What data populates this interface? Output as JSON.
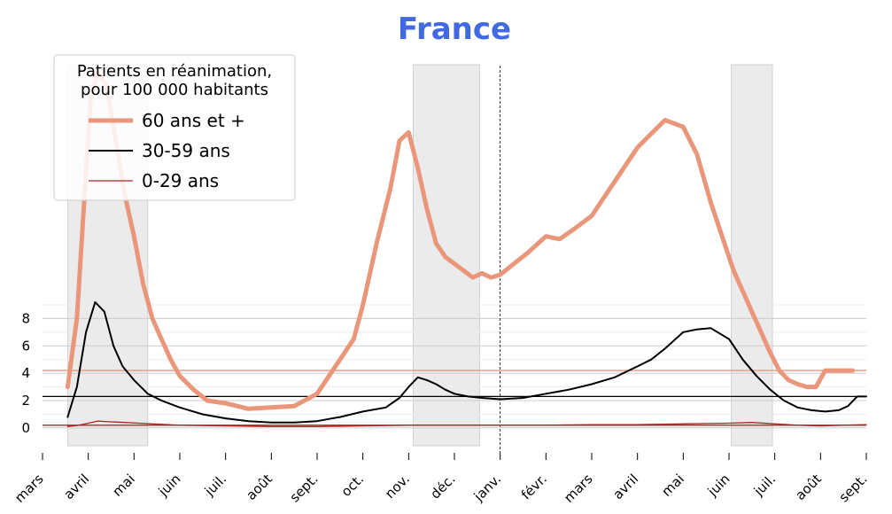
{
  "chart_data": {
    "type": "line",
    "title": "France",
    "legend": {
      "title_lines": [
        "Patients en réanimation,",
        "pour 100 000 habitants"
      ],
      "placement": "top-left"
    },
    "x_tick_labels": [
      "mars",
      "avril",
      "mai",
      "juin",
      "juil.",
      "août",
      "sept.",
      "oct.",
      "nov.",
      "déc.",
      "janv.",
      "févr.",
      "mars",
      "avril",
      "mai",
      "juin",
      "juil.",
      "août",
      "sept."
    ],
    "y_tick_labels": [
      "0",
      "2",
      "4",
      "6",
      "8"
    ],
    "y_ticks": [
      0,
      2,
      4,
      6,
      8
    ],
    "ylim": [
      -1.3,
      27
    ],
    "x_range_months": [
      0,
      18
    ],
    "grid": true,
    "vertical_marker_month": 10,
    "shaded_periods_months": [
      [
        0.55,
        2.3
      ],
      [
        8.1,
        9.55
      ],
      [
        15.05,
        15.95
      ]
    ],
    "reference_lines": [
      {
        "y": 4.2,
        "color": "#E9967A"
      },
      {
        "y": 2.3,
        "color": "#000000"
      },
      {
        "y": 0.2,
        "color": "#B22222"
      }
    ],
    "series": [
      {
        "name": "60 ans et +",
        "color": "#E9967A",
        "x": [
          0.55,
          0.75,
          0.9,
          1.05,
          1.2,
          1.4,
          1.6,
          1.8,
          2.0,
          2.2,
          2.4,
          2.6,
          2.8,
          3.0,
          3.3,
          3.6,
          4.0,
          4.5,
          5.0,
          5.5,
          6.0,
          6.3,
          6.6,
          6.8,
          7.0,
          7.3,
          7.6,
          7.8,
          8.0,
          8.2,
          8.4,
          8.6,
          8.8,
          9.0,
          9.2,
          9.4,
          9.6,
          9.8,
          10.0,
          10.3,
          10.6,
          11.0,
          11.3,
          11.6,
          12.0,
          12.3,
          12.6,
          13.0,
          13.3,
          13.6,
          14.0,
          14.3,
          14.6,
          14.9,
          15.1,
          15.3,
          15.5,
          15.7,
          15.9,
          16.1,
          16.3,
          16.5,
          16.7,
          16.9,
          17.1,
          17.3,
          17.5,
          17.7
        ],
        "values": [
          3.0,
          8.0,
          16.0,
          24.0,
          26.0,
          25.0,
          21.0,
          17.0,
          14.0,
          10.5,
          8.0,
          6.5,
          5.0,
          3.8,
          2.8,
          2.0,
          1.8,
          1.4,
          1.5,
          1.6,
          2.5,
          4.0,
          5.5,
          6.5,
          9.0,
          13.5,
          17.5,
          21.0,
          21.6,
          19.0,
          16.0,
          13.5,
          12.5,
          12.0,
          11.5,
          11.0,
          11.3,
          11.0,
          11.2,
          12.0,
          12.8,
          14.0,
          13.8,
          14.5,
          15.5,
          17.0,
          18.5,
          20.5,
          21.5,
          22.5,
          22.0,
          20.0,
          16.5,
          13.5,
          11.5,
          10.0,
          8.5,
          7.0,
          5.5,
          4.2,
          3.5,
          3.2,
          3.0,
          3.0,
          4.2,
          4.2,
          4.2,
          4.2
        ]
      },
      {
        "name": "30-59 ans",
        "color": "#000000",
        "x": [
          0.55,
          0.75,
          0.95,
          1.15,
          1.35,
          1.55,
          1.75,
          2.0,
          2.3,
          2.6,
          3.0,
          3.5,
          4.0,
          4.5,
          5.0,
          5.5,
          6.0,
          6.5,
          7.0,
          7.5,
          7.8,
          8.0,
          8.2,
          8.4,
          8.6,
          8.8,
          9.0,
          9.3,
          9.6,
          10.0,
          10.5,
          11.0,
          11.5,
          12.0,
          12.5,
          13.0,
          13.3,
          13.6,
          14.0,
          14.3,
          14.6,
          15.0,
          15.3,
          15.6,
          15.9,
          16.2,
          16.5,
          16.8,
          17.1,
          17.4,
          17.6,
          17.8,
          18.0
        ],
        "values": [
          0.8,
          3.0,
          7.0,
          9.2,
          8.5,
          6.0,
          4.5,
          3.5,
          2.5,
          2.0,
          1.5,
          1.0,
          0.7,
          0.5,
          0.4,
          0.4,
          0.5,
          0.8,
          1.2,
          1.5,
          2.2,
          3.0,
          3.7,
          3.5,
          3.2,
          2.8,
          2.5,
          2.3,
          2.2,
          2.1,
          2.2,
          2.5,
          2.8,
          3.2,
          3.7,
          4.5,
          5.0,
          5.8,
          7.0,
          7.2,
          7.3,
          6.5,
          5.0,
          3.8,
          2.8,
          2.0,
          1.5,
          1.3,
          1.2,
          1.3,
          1.6,
          2.3,
          2.3
        ]
      },
      {
        "name": "0-29 ans",
        "color": "#B22222",
        "x": [
          0.55,
          0.8,
          1.0,
          1.2,
          1.5,
          1.8,
          2.1,
          2.4,
          3.0,
          4.0,
          5.0,
          6.0,
          7.0,
          8.0,
          9.0,
          10.0,
          11.0,
          12.0,
          13.0,
          14.0,
          15.0,
          15.5,
          16.0,
          16.5,
          17.0,
          17.5,
          18.0
        ],
        "values": [
          0.1,
          0.2,
          0.35,
          0.5,
          0.45,
          0.4,
          0.35,
          0.3,
          0.2,
          0.15,
          0.1,
          0.1,
          0.15,
          0.2,
          0.2,
          0.2,
          0.2,
          0.25,
          0.25,
          0.3,
          0.35,
          0.4,
          0.3,
          0.2,
          0.15,
          0.2,
          0.25
        ]
      }
    ]
  }
}
